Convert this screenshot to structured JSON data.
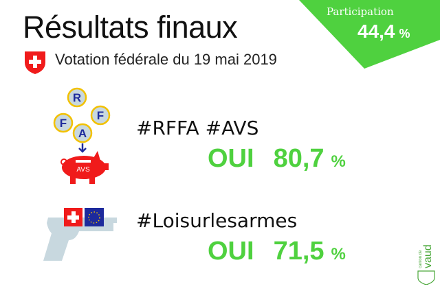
{
  "header": {
    "title": "Résultats finaux",
    "subtitle": "Votation fédérale du 19 mai 2019"
  },
  "participation": {
    "label": "Participation",
    "value": "44,4",
    "unit": "%"
  },
  "votes": [
    {
      "tag": "#RFFA  #AVS",
      "answer": "OUI",
      "value": "80,7",
      "unit": "%",
      "icon_letters": [
        "R",
        "F",
        "F",
        "A"
      ],
      "piggy_label": "AVS"
    },
    {
      "tag": "#Loisurlesarmes",
      "answer": "OUI",
      "value": "71,5",
      "unit": "%"
    }
  ],
  "logo": {
    "text": "canton de vaud"
  },
  "colors": {
    "green": "#4fd13f",
    "swiss_red": "#f01b1b",
    "eu_blue": "#1d2a9c",
    "coin_border": "#f2c100",
    "gun": "#c8d8df"
  }
}
